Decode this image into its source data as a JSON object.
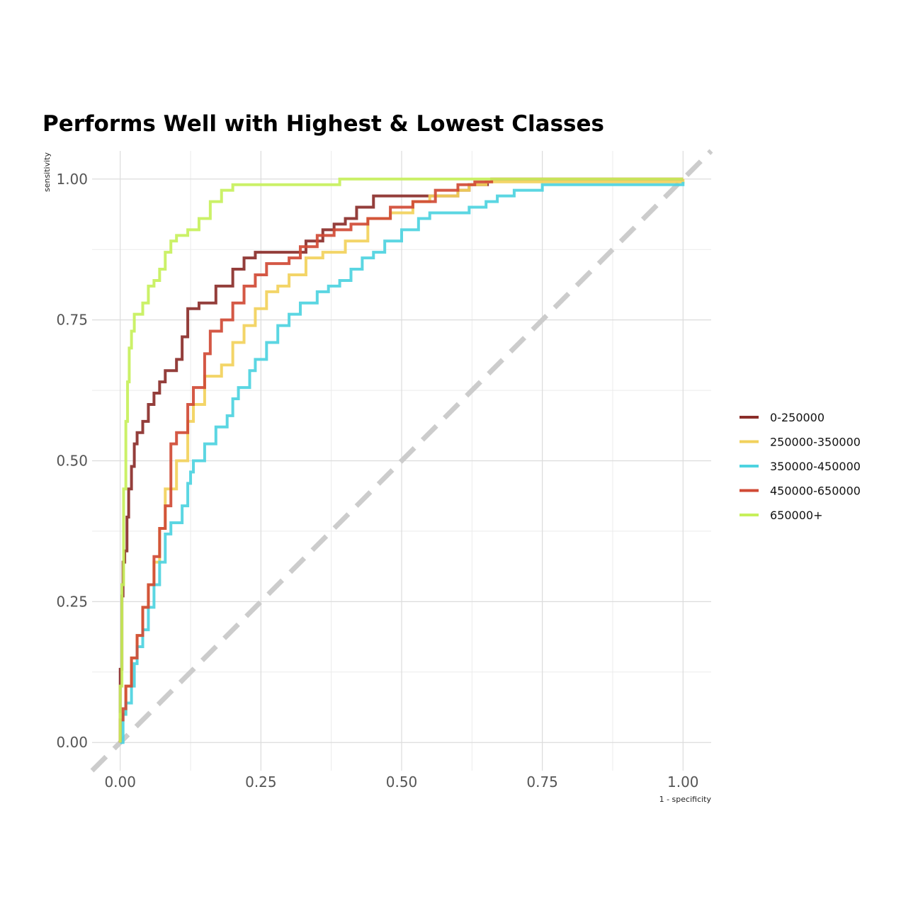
{
  "chart_data": {
    "type": "line",
    "title": "Performs Well with Highest & Lowest Classes",
    "xlabel": "1 - specificity",
    "ylabel": "sensitivity",
    "xlim": [
      -0.05,
      1.05
    ],
    "ylim": [
      -0.05,
      1.05
    ],
    "xticks": [
      "0.00",
      "0.25",
      "0.50",
      "0.75",
      "1.00"
    ],
    "yticks": [
      "0.00",
      "0.25",
      "0.50",
      "0.75",
      "1.00"
    ],
    "grid": true,
    "legend_position": "right",
    "reference_line": {
      "x": [
        -0.05,
        1.05
      ],
      "y": [
        -0.05,
        1.05
      ],
      "style": "dashed",
      "color": "#cccccc"
    },
    "series": [
      {
        "name": "0-250000",
        "color": "#8B2E2A",
        "x": [
          0.0,
          0.0,
          0.003,
          0.005,
          0.008,
          0.012,
          0.015,
          0.02,
          0.025,
          0.03,
          0.04,
          0.05,
          0.06,
          0.07,
          0.08,
          0.1,
          0.11,
          0.12,
          0.14,
          0.17,
          0.2,
          0.22,
          0.24,
          0.3,
          0.33,
          0.36,
          0.38,
          0.4,
          0.42,
          0.45,
          0.5,
          0.55,
          0.6,
          0.62,
          0.655
        ],
        "y": [
          0.0,
          0.13,
          0.26,
          0.32,
          0.34,
          0.4,
          0.45,
          0.49,
          0.53,
          0.55,
          0.57,
          0.6,
          0.62,
          0.64,
          0.66,
          0.68,
          0.72,
          0.77,
          0.78,
          0.81,
          0.84,
          0.86,
          0.87,
          0.87,
          0.89,
          0.91,
          0.92,
          0.93,
          0.95,
          0.97,
          0.97,
          0.97,
          0.98,
          0.99,
          0.99
        ]
      },
      {
        "name": "250000-350000",
        "color": "#F2D15B",
        "x": [
          0.0,
          0.0,
          0.01,
          0.02,
          0.03,
          0.04,
          0.05,
          0.06,
          0.07,
          0.08,
          0.1,
          0.12,
          0.13,
          0.15,
          0.18,
          0.2,
          0.22,
          0.24,
          0.26,
          0.28,
          0.3,
          0.33,
          0.36,
          0.4,
          0.44,
          0.48,
          0.52,
          0.55,
          0.6,
          0.62,
          0.65,
          1.0
        ],
        "y": [
          0.0,
          0.05,
          0.1,
          0.15,
          0.19,
          0.24,
          0.28,
          0.32,
          0.38,
          0.45,
          0.5,
          0.57,
          0.6,
          0.65,
          0.67,
          0.71,
          0.74,
          0.77,
          0.8,
          0.81,
          0.83,
          0.86,
          0.87,
          0.89,
          0.93,
          0.94,
          0.96,
          0.97,
          0.98,
          0.99,
          0.995,
          1.0
        ]
      },
      {
        "name": "350000-450000",
        "color": "#4DD3E0",
        "x": [
          0.0,
          0.005,
          0.01,
          0.02,
          0.025,
          0.03,
          0.04,
          0.05,
          0.06,
          0.07,
          0.08,
          0.09,
          0.11,
          0.12,
          0.125,
          0.13,
          0.15,
          0.17,
          0.19,
          0.2,
          0.21,
          0.23,
          0.24,
          0.26,
          0.28,
          0.3,
          0.32,
          0.35,
          0.37,
          0.39,
          0.41,
          0.43,
          0.45,
          0.47,
          0.5,
          0.53,
          0.55,
          0.59,
          0.62,
          0.65,
          0.67,
          0.7,
          0.75,
          0.8,
          1.0
        ],
        "y": [
          0.0,
          0.05,
          0.07,
          0.1,
          0.14,
          0.17,
          0.2,
          0.24,
          0.28,
          0.32,
          0.37,
          0.39,
          0.42,
          0.46,
          0.48,
          0.5,
          0.53,
          0.56,
          0.58,
          0.61,
          0.63,
          0.66,
          0.68,
          0.71,
          0.74,
          0.76,
          0.78,
          0.8,
          0.81,
          0.82,
          0.84,
          0.86,
          0.87,
          0.89,
          0.91,
          0.93,
          0.94,
          0.94,
          0.95,
          0.96,
          0.97,
          0.98,
          0.99,
          0.99,
          0.995
        ]
      },
      {
        "name": "450000-650000",
        "color": "#D04A35",
        "x": [
          0.0,
          0.0,
          0.005,
          0.01,
          0.02,
          0.03,
          0.04,
          0.05,
          0.06,
          0.07,
          0.08,
          0.09,
          0.1,
          0.12,
          0.13,
          0.15,
          0.16,
          0.18,
          0.2,
          0.22,
          0.24,
          0.26,
          0.28,
          0.3,
          0.32,
          0.35,
          0.38,
          0.41,
          0.44,
          0.48,
          0.52,
          0.56,
          0.6,
          0.63,
          0.66,
          1.0
        ],
        "y": [
          0.0,
          0.04,
          0.06,
          0.1,
          0.15,
          0.19,
          0.24,
          0.28,
          0.33,
          0.38,
          0.42,
          0.53,
          0.55,
          0.6,
          0.63,
          0.69,
          0.73,
          0.75,
          0.78,
          0.81,
          0.83,
          0.85,
          0.85,
          0.86,
          0.88,
          0.9,
          0.91,
          0.92,
          0.93,
          0.95,
          0.96,
          0.98,
          0.99,
          0.995,
          1.0,
          1.0
        ]
      },
      {
        "name": "650000+",
        "color": "#C7F05B",
        "x": [
          0.0,
          0.0,
          0.003,
          0.006,
          0.01,
          0.013,
          0.016,
          0.02,
          0.025,
          0.03,
          0.04,
          0.05,
          0.06,
          0.07,
          0.08,
          0.09,
          0.1,
          0.12,
          0.14,
          0.16,
          0.18,
          0.2,
          0.22,
          0.3,
          0.39,
          0.45,
          0.56,
          0.7,
          1.0
        ],
        "y": [
          0.0,
          0.1,
          0.28,
          0.45,
          0.57,
          0.64,
          0.7,
          0.73,
          0.76,
          0.76,
          0.78,
          0.81,
          0.82,
          0.84,
          0.87,
          0.89,
          0.9,
          0.91,
          0.93,
          0.96,
          0.98,
          0.99,
          0.99,
          0.99,
          1.0,
          1.0,
          1.0,
          1.0,
          1.0
        ]
      }
    ]
  }
}
